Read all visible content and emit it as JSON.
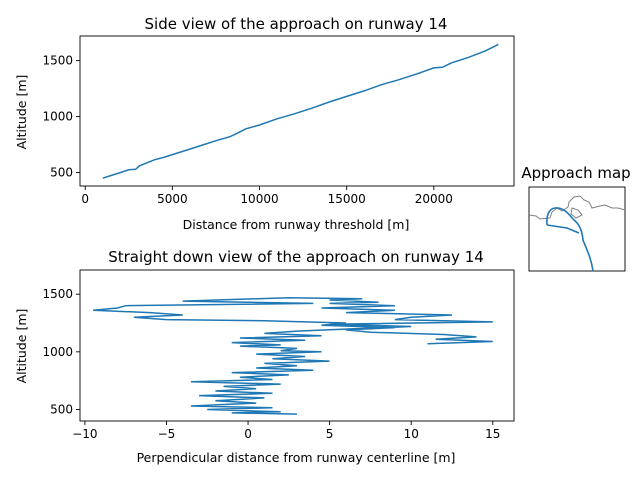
{
  "chart_data": [
    {
      "type": "line",
      "title": "Side view of the approach on runway 14",
      "xlabel": "Distance from runway threshold [m]",
      "ylabel": "Altitude [m]",
      "xlim": [
        -300,
        24600
      ],
      "ylim": [
        380,
        1720
      ],
      "xticks": [
        0,
        5000,
        10000,
        15000,
        20000
      ],
      "yticks": [
        500,
        1000,
        1500
      ],
      "color": "#1f77b4",
      "series": [
        {
          "x": [
            1000,
            1500,
            2000,
            2500,
            2900,
            3100,
            3500,
            4000,
            4600,
            5200,
            6000,
            6800,
            7500,
            8300,
            8700,
            9200,
            10000,
            11000,
            12000,
            13000,
            14000,
            15000,
            16000,
            17000,
            18000,
            19000,
            20000,
            20500,
            21000,
            22000,
            23000,
            23700
          ],
          "y": [
            450,
            475,
            500,
            525,
            530,
            560,
            585,
            615,
            640,
            670,
            710,
            750,
            785,
            820,
            850,
            890,
            925,
            980,
            1025,
            1075,
            1130,
            1180,
            1230,
            1285,
            1330,
            1380,
            1435,
            1440,
            1480,
            1530,
            1590,
            1645
          ]
        }
      ]
    },
    {
      "type": "line",
      "title": "Straight down view of the approach on runway 14",
      "xlabel": "Perpendicular distance from runway centerline [m]",
      "ylabel": "Altitude [m]",
      "xlim": [
        -10.3,
        16.3
      ],
      "ylim": [
        400,
        1710
      ],
      "xticks": [
        -10,
        -5,
        0,
        5,
        10,
        15
      ],
      "yticks": [
        500,
        1000,
        1500
      ],
      "color": "#1f77b4",
      "series": [
        {
          "x": [
            3,
            -1,
            2,
            -2.5,
            1.5,
            -3.5,
            0.5,
            -2,
            1,
            -3,
            1.5,
            -2,
            0.5,
            -1.5,
            2,
            -3.5,
            1.5,
            -0.5,
            2.5,
            -1,
            4,
            0.5,
            3,
            1,
            5,
            1.5,
            3.5,
            0.5,
            4.5,
            2,
            3,
            -0.5,
            2,
            -1,
            3.5,
            -0.5,
            4.5,
            1,
            3,
            6.5,
            10,
            5,
            15,
            9,
            10,
            12.5,
            6,
            9,
            4.5,
            9,
            5,
            8,
            5,
            7,
            2.5,
            -4,
            4,
            -7.5,
            -8,
            -9.5,
            -6,
            -4,
            -7,
            -5,
            1,
            6,
            4.5,
            9,
            6,
            7.5,
            12,
            14,
            11.5,
            15,
            11
          ],
          "y": [
            460,
            470,
            480,
            500,
            515,
            530,
            555,
            575,
            600,
            620,
            640,
            660,
            680,
            700,
            720,
            740,
            760,
            780,
            800,
            820,
            840,
            860,
            880,
            900,
            920,
            940,
            960,
            980,
            1000,
            1010,
            1030,
            1050,
            1060,
            1080,
            1100,
            1120,
            1140,
            1160,
            1180,
            1200,
            1220,
            1240,
            1260,
            1280,
            1300,
            1320,
            1340,
            1360,
            1380,
            1400,
            1420,
            1430,
            1450,
            1460,
            1470,
            1440,
            1420,
            1400,
            1380,
            1360,
            1340,
            1320,
            1300,
            1280,
            1270,
            1250,
            1230,
            1210,
            1190,
            1170,
            1150,
            1130,
            1110,
            1090,
            1070
          ]
        }
      ]
    }
  ],
  "inset": {
    "title": "Approach map",
    "line_color": "#1f77b4",
    "coast_color": "#808080"
  }
}
